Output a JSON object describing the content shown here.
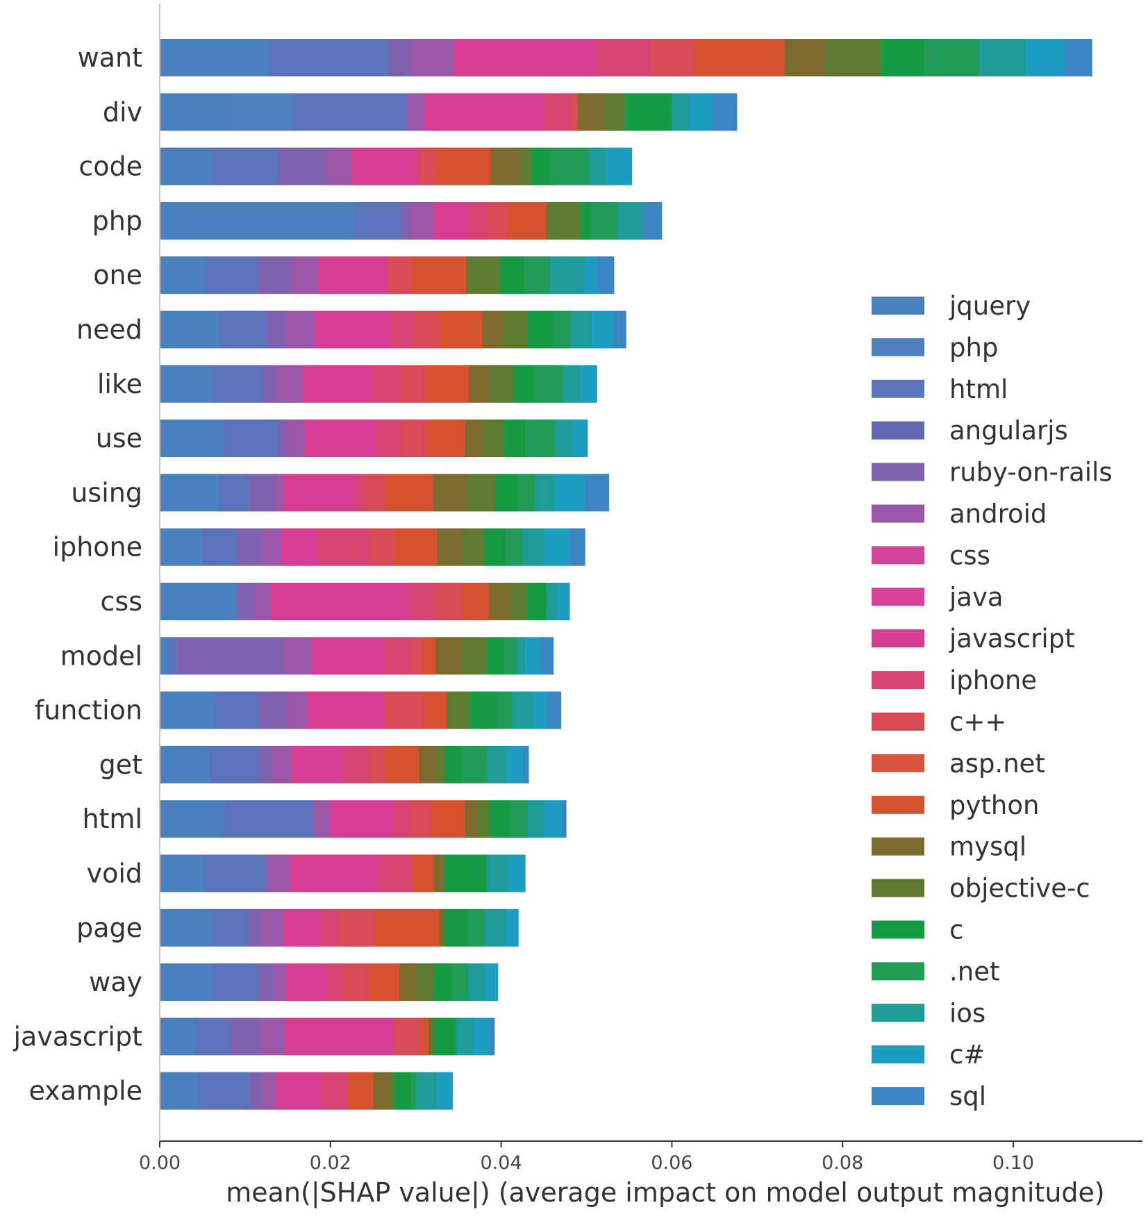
{
  "chart_data": {
    "type": "bar",
    "stacked": true,
    "orientation": "horizontal",
    "xlabel": "mean(|SHAP value|) (average impact on model output magnitude)",
    "xlim": [
      0,
      0.1145
    ],
    "xticks": [
      0.0,
      0.02,
      0.04,
      0.06,
      0.08,
      0.1
    ],
    "xtick_labels": [
      "0.00",
      "0.02",
      "0.04",
      "0.06",
      "0.08",
      "0.10"
    ],
    "legend_position": "right",
    "categories": [
      "want",
      "div",
      "code",
      "php",
      "one",
      "need",
      "like",
      "use",
      "using",
      "iphone",
      "css",
      "model",
      "function",
      "get",
      "html",
      "void",
      "page",
      "way",
      "javascript",
      "example"
    ],
    "series": [
      {
        "name": "jquery",
        "color": "#4a80bd",
        "values": [
          0.0128,
          0.0085,
          0.006,
          0.0228,
          0.0055,
          0.007,
          0.006,
          0.0075,
          0.007,
          0.005,
          0.009,
          0.001,
          0.0065,
          0.0058,
          0.0075,
          0.0052,
          0.006,
          0.006,
          0.004,
          0.0045
        ]
      },
      {
        "name": "php",
        "color": "#4f7fbf",
        "values": [
          0.0,
          0.007,
          0.0,
          0.0,
          0.0,
          0.0,
          0.0,
          0.0,
          0.0,
          0.0,
          0.0,
          0.0,
          0.0,
          0.0,
          0.0,
          0.0,
          0.0,
          0.0,
          0.0,
          0.0
        ]
      },
      {
        "name": "html",
        "color": "#5b73bb",
        "values": [
          0.014,
          0.0135,
          0.008,
          0.0055,
          0.006,
          0.0055,
          0.006,
          0.0065,
          0.0035,
          0.004,
          0.0,
          0.001,
          0.005,
          0.0058,
          0.0105,
          0.0073,
          0.0043,
          0.0055,
          0.0042,
          0.006
        ]
      },
      {
        "name": "angularjs",
        "color": "#6469b6",
        "values": [
          0.0,
          0.0,
          0.0,
          0.0,
          0.0,
          0.0,
          0.0,
          0.0,
          0.0,
          0.0,
          0.0,
          0.0,
          0.0,
          0.0,
          0.0,
          0.0,
          0.0,
          0.0,
          0.0,
          0.0
        ]
      },
      {
        "name": "ruby-on-rails",
        "color": "#7e62b0",
        "values": [
          0.0025,
          0.0,
          0.0055,
          0.001,
          0.0038,
          0.0022,
          0.0015,
          0.0008,
          0.003,
          0.003,
          0.002,
          0.0125,
          0.0033,
          0.0015,
          0.0,
          0.0,
          0.0015,
          0.0018,
          0.0035,
          0.0015
        ]
      },
      {
        "name": "android",
        "color": "#9a57a8",
        "values": [
          0.0052,
          0.002,
          0.003,
          0.0028,
          0.0033,
          0.0035,
          0.0032,
          0.0022,
          0.001,
          0.0022,
          0.002,
          0.0033,
          0.0025,
          0.0023,
          0.002,
          0.0028,
          0.0027,
          0.0015,
          0.003,
          0.0017
        ]
      },
      {
        "name": "css",
        "color": "#d2439c",
        "values": [
          0.0,
          0.0,
          0.0,
          0.0,
          0.0,
          0.0,
          0.0,
          0.0,
          0.0,
          0.0,
          0.0,
          0.0,
          0.0,
          0.0,
          0.0,
          0.0,
          0.0,
          0.0,
          0.0,
          0.0
        ]
      },
      {
        "name": "java",
        "color": "#d8409a",
        "values": [
          0.0,
          0.0,
          0.0,
          0.0,
          0.0,
          0.0,
          0.0,
          0.0,
          0.0,
          0.0,
          0.0,
          0.0,
          0.0,
          0.0,
          0.0,
          0.0,
          0.0,
          0.0,
          0.0,
          0.0
        ]
      },
      {
        "name": "javascript",
        "color": "#d63d93",
        "values": [
          0.0165,
          0.014,
          0.0078,
          0.004,
          0.008,
          0.0088,
          0.008,
          0.0083,
          0.0085,
          0.0043,
          0.0162,
          0.0085,
          0.009,
          0.0062,
          0.0073,
          0.0103,
          0.0045,
          0.0048,
          0.0128,
          0.0053
        ]
      },
      {
        "name": "iphone",
        "color": "#d54473",
        "values": [
          0.0065,
          0.003,
          0.0,
          0.0022,
          0.0,
          0.0028,
          0.0035,
          0.003,
          0.001,
          0.006,
          0.003,
          0.003,
          0.0,
          0.003,
          0.002,
          0.004,
          0.002,
          0.002,
          0.0,
          0.003
        ]
      },
      {
        "name": "c++",
        "color": "#d84a55",
        "values": [
          0.0052,
          0.001,
          0.002,
          0.0025,
          0.0028,
          0.003,
          0.003,
          0.003,
          0.0025,
          0.003,
          0.0033,
          0.0015,
          0.0048,
          0.0018,
          0.0025,
          0.0,
          0.0043,
          0.003,
          0.003,
          0.0
        ]
      },
      {
        "name": "asp.net",
        "color": "#d9533d",
        "values": [
          0.0,
          0.0,
          0.0,
          0.0,
          0.0,
          0.0,
          0.0,
          0.0,
          0.0,
          0.0,
          0.0,
          0.0,
          0.0,
          0.0,
          0.0,
          0.0,
          0.0,
          0.0,
          0.0,
          0.0
        ]
      },
      {
        "name": "python",
        "color": "#d6512f",
        "values": [
          0.0105,
          0.0,
          0.0065,
          0.0045,
          0.0065,
          0.005,
          0.005,
          0.0045,
          0.0055,
          0.005,
          0.003,
          0.0015,
          0.0025,
          0.004,
          0.004,
          0.0025,
          0.0075,
          0.0035,
          0.001,
          0.003
        ]
      },
      {
        "name": "mysql",
        "color": "#7d6a2e",
        "values": [
          0.0048,
          0.003,
          0.0035,
          0.0,
          0.0,
          0.0023,
          0.0025,
          0.002,
          0.004,
          0.003,
          0.0025,
          0.003,
          0.0,
          0.002,
          0.0013,
          0.0012,
          0.0,
          0.002,
          0.0,
          0.002
        ]
      },
      {
        "name": "objective-c",
        "color": "#5e7a30",
        "values": [
          0.0065,
          0.0025,
          0.0012,
          0.004,
          0.004,
          0.003,
          0.0027,
          0.0025,
          0.0033,
          0.0025,
          0.002,
          0.003,
          0.0027,
          0.001,
          0.0015,
          0.0,
          0.0007,
          0.002,
          0.0007,
          0.0005
        ]
      },
      {
        "name": "c",
        "color": "#159a43",
        "values": [
          0.005,
          0.0055,
          0.0023,
          0.0013,
          0.0028,
          0.003,
          0.0025,
          0.0025,
          0.0027,
          0.0025,
          0.0023,
          0.002,
          0.0032,
          0.002,
          0.0025,
          0.005,
          0.0025,
          0.002,
          0.0025,
          0.002
        ]
      },
      {
        "name": ".net",
        "color": "#229a58",
        "values": [
          0.0065,
          0.0,
          0.0045,
          0.003,
          0.003,
          0.002,
          0.0033,
          0.0035,
          0.002,
          0.002,
          0.0,
          0.0015,
          0.0018,
          0.003,
          0.002,
          0.0,
          0.002,
          0.002,
          0.0,
          0.0005
        ]
      },
      {
        "name": "ios",
        "color": "#1f9c97",
        "values": [
          0.0055,
          0.002,
          0.002,
          0.003,
          0.004,
          0.0025,
          0.002,
          0.002,
          0.0023,
          0.0025,
          0.0012,
          0.001,
          0.0025,
          0.0022,
          0.002,
          0.0025,
          0.0025,
          0.002,
          0.002,
          0.0025
        ]
      },
      {
        "name": "c#",
        "color": "#1e9dc2",
        "values": [
          0.0045,
          0.0028,
          0.003,
          0.0,
          0.0015,
          0.0025,
          0.002,
          0.0018,
          0.0035,
          0.003,
          0.0015,
          0.0018,
          0.0015,
          0.002,
          0.002,
          0.002,
          0.0015,
          0.0015,
          0.002,
          0.0018
        ]
      },
      {
        "name": "sql",
        "color": "#3a85c2",
        "values": [
          0.0032,
          0.0028,
          0.0,
          0.0022,
          0.002,
          0.0015,
          0.0,
          0.0,
          0.0028,
          0.0018,
          0.0,
          0.0015,
          0.0017,
          0.0006,
          0.0005,
          0.0,
          0.0,
          0.0,
          0.0005,
          0.0
        ]
      }
    ]
  }
}
